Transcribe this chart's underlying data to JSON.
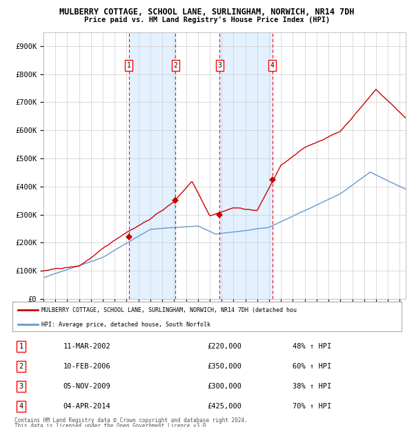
{
  "title": "MULBERRY COTTAGE, SCHOOL LANE, SURLINGHAM, NORWICH, NR14 7DH",
  "subtitle": "Price paid vs. HM Land Registry's House Price Index (HPI)",
  "ylabel_ticks": [
    "£0",
    "£100K",
    "£200K",
    "£300K",
    "£400K",
    "£500K",
    "£600K",
    "£700K",
    "£800K",
    "£900K"
  ],
  "ytick_values": [
    0,
    100000,
    200000,
    300000,
    400000,
    500000,
    600000,
    700000,
    800000,
    900000
  ],
  "ylim": [
    0,
    950000
  ],
  "xlim_start": 1995.0,
  "xlim_end": 2025.5,
  "sale_dates": [
    2002.19,
    2006.11,
    2009.84,
    2014.26
  ],
  "sale_prices": [
    220000,
    350000,
    300000,
    425000
  ],
  "sale_labels": [
    "1",
    "2",
    "3",
    "4"
  ],
  "legend_line1": "MULBERRY COTTAGE, SCHOOL LANE, SURLINGHAM, NORWICH, NR14 7DH (detached hou",
  "legend_line2": "HPI: Average price, detached house, South Norfolk",
  "table_data": [
    [
      "1",
      "11-MAR-2002",
      "£220,000",
      "48% ↑ HPI"
    ],
    [
      "2",
      "10-FEB-2006",
      "£350,000",
      "60% ↑ HPI"
    ],
    [
      "3",
      "05-NOV-2009",
      "£300,000",
      "38% ↑ HPI"
    ],
    [
      "4",
      "04-APR-2014",
      "£425,000",
      "70% ↑ HPI"
    ]
  ],
  "footnote1": "Contains HM Land Registry data © Crown copyright and database right 2024.",
  "footnote2": "This data is licensed under the Open Government Licence v3.0.",
  "hpi_color": "#6699cc",
  "price_color": "#cc0000",
  "bg_color": "#ffffff",
  "chart_bg": "#ffffff",
  "grid_color": "#cccccc",
  "band_color": "#ddeeff"
}
